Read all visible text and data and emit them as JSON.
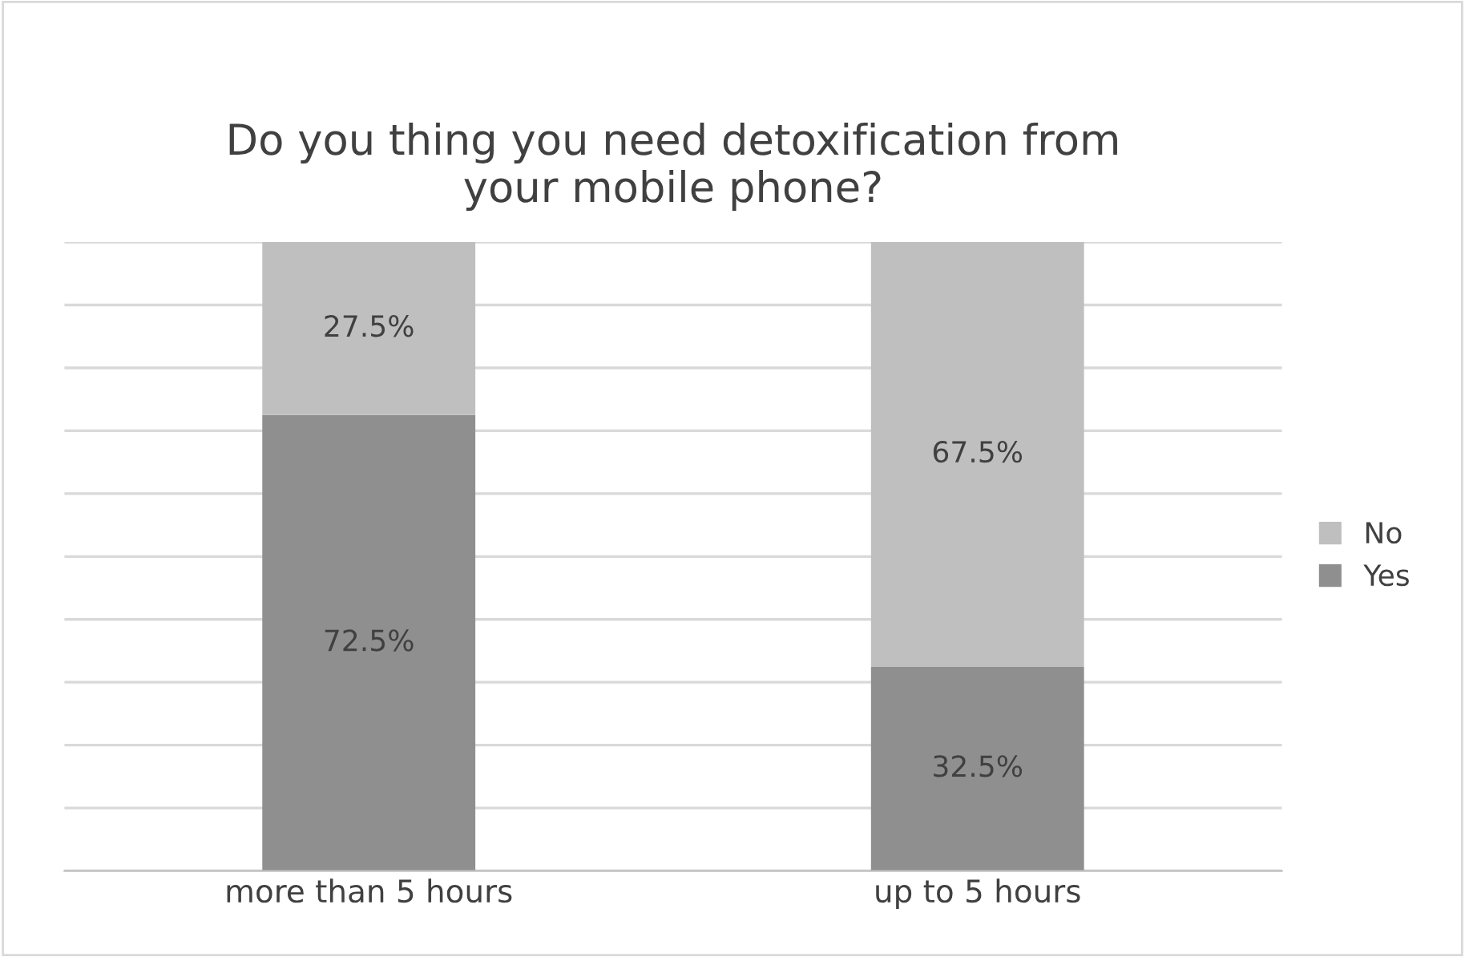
{
  "chart_data": {
    "type": "bar",
    "title": "Do you thing you need detoxification from\nyour mobile phone?",
    "categories": [
      "more than 5 hours",
      "up to 5 hours"
    ],
    "stacked": true,
    "series": [
      {
        "name": "Yes",
        "color": "#8f8f8f",
        "values": [
          72.5,
          32.5
        ],
        "value_labels": [
          "72.5%",
          "32.5%"
        ]
      },
      {
        "name": "No",
        "color": "#bfbfbf",
        "values": [
          27.5,
          67.5
        ],
        "value_labels": [
          "27.5%",
          "67.5%"
        ]
      }
    ],
    "ylim": [
      0,
      100
    ],
    "yticks": [
      {
        "value": 0,
        "label": null
      },
      {
        "value": 10,
        "label": null
      },
      {
        "value": 20,
        "label": null
      },
      {
        "value": 30,
        "label": null
      },
      {
        "value": 40,
        "label": null
      },
      {
        "value": 50,
        "label": null
      },
      {
        "value": 60,
        "label": null
      },
      {
        "value": 70,
        "label": null
      },
      {
        "value": 80,
        "label": null
      },
      {
        "value": 90,
        "label": null
      },
      {
        "value": 100,
        "label": null
      }
    ],
    "tick_labels": "x",
    "grid": "y",
    "legend": "right"
  }
}
